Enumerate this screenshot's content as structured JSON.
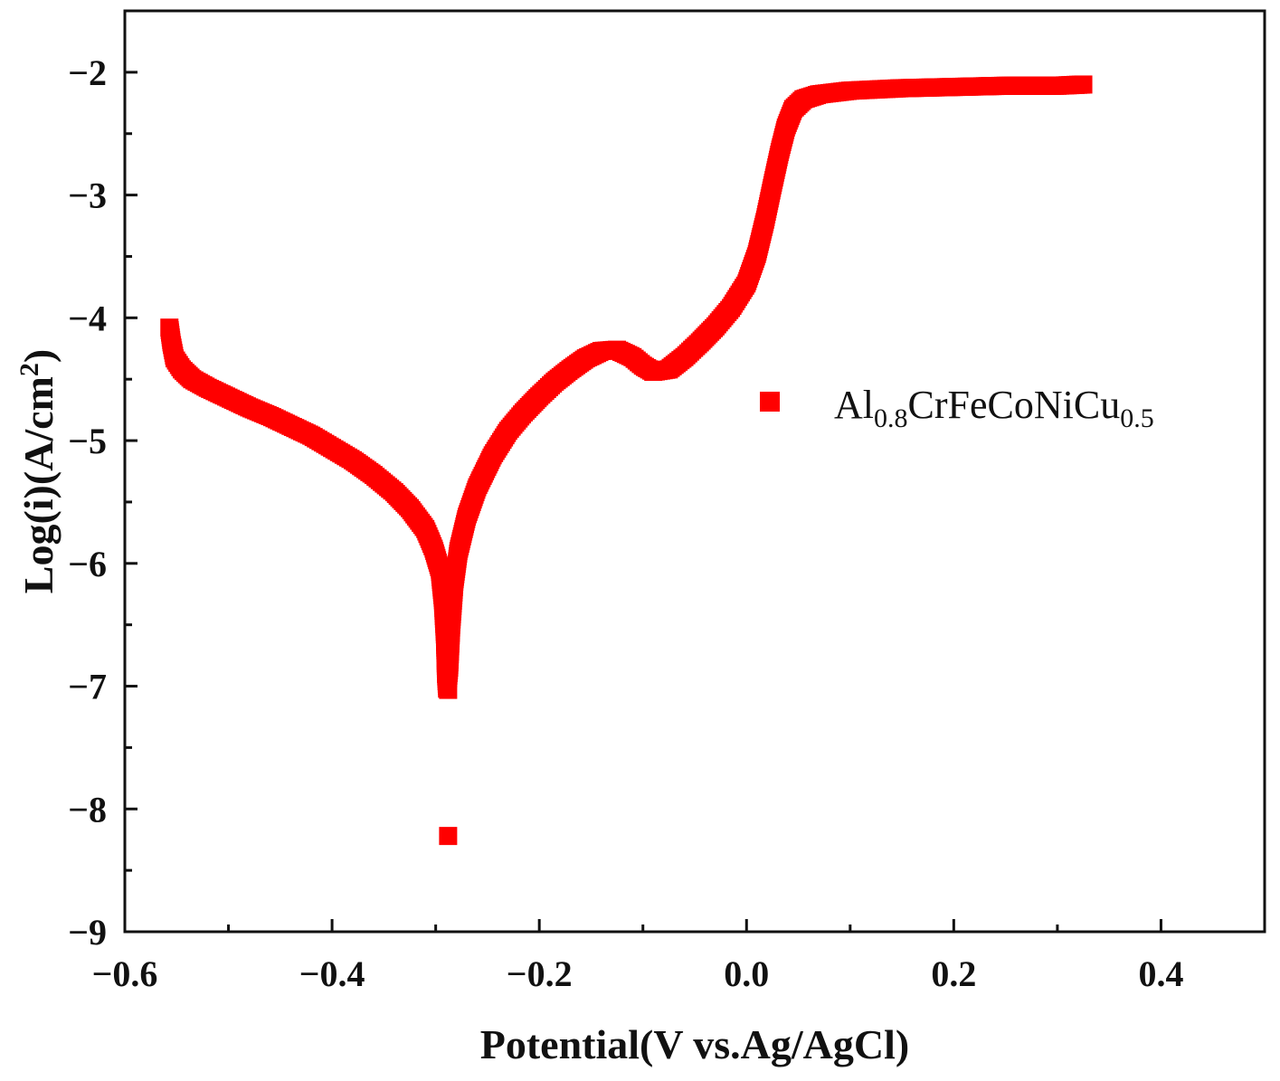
{
  "chart_data": {
    "type": "scatter",
    "title": "",
    "xlabel": "Potential(V vs.Ag/AgCl)",
    "ylabel_parts": {
      "main": "Log(i)(A/cm",
      "sup": "2",
      "end": ")"
    },
    "xlim": [
      -0.6,
      0.5
    ],
    "ylim": [
      -9,
      -1.5
    ],
    "x_ticks": [
      -0.6,
      -0.4,
      -0.2,
      0.0,
      0.2,
      0.4
    ],
    "x_tick_labels": [
      "−0.6",
      "−0.4",
      "−0.2",
      "0.0",
      "0.2",
      "0.4"
    ],
    "y_ticks": [
      -2,
      -3,
      -4,
      -5,
      -6,
      -7,
      -8,
      -9
    ],
    "y_tick_labels": [
      "−2",
      "−3",
      "−4",
      "−5",
      "−6",
      "−7",
      "−8",
      "−9"
    ],
    "grid": false,
    "legend_position": "right-middle",
    "marker_color": "#ff0000",
    "legend": {
      "parts": [
        {
          "text": "Al",
          "sub": false
        },
        {
          "text": "0.8",
          "sub": true
        },
        {
          "text": "CrFeCoNiCu",
          "sub": false
        },
        {
          "text": "0.5",
          "sub": true
        }
      ]
    },
    "series": [
      {
        "name": "Al0.8CrFeCoNiCu0.5",
        "points": [
          [
            -0.557,
            -4.08
          ],
          [
            -0.555,
            -4.2
          ],
          [
            -0.552,
            -4.33
          ],
          [
            -0.545,
            -4.42
          ],
          [
            -0.535,
            -4.5
          ],
          [
            -0.52,
            -4.57
          ],
          [
            -0.5,
            -4.65
          ],
          [
            -0.48,
            -4.73
          ],
          [
            -0.46,
            -4.8
          ],
          [
            -0.44,
            -4.88
          ],
          [
            -0.42,
            -4.96
          ],
          [
            -0.4,
            -5.06
          ],
          [
            -0.38,
            -5.16
          ],
          [
            -0.36,
            -5.28
          ],
          [
            -0.34,
            -5.42
          ],
          [
            -0.325,
            -5.55
          ],
          [
            -0.31,
            -5.72
          ],
          [
            -0.302,
            -5.88
          ],
          [
            -0.296,
            -6.05
          ],
          [
            -0.293,
            -6.3
          ],
          [
            -0.291,
            -6.6
          ],
          [
            -0.29,
            -6.9
          ],
          [
            -0.289,
            -7.02
          ],
          [
            -0.287,
            -6.85
          ],
          [
            -0.285,
            -6.5
          ],
          [
            -0.282,
            -6.15
          ],
          [
            -0.278,
            -5.9
          ],
          [
            -0.27,
            -5.62
          ],
          [
            -0.26,
            -5.38
          ],
          [
            -0.245,
            -5.12
          ],
          [
            -0.23,
            -4.92
          ],
          [
            -0.215,
            -4.77
          ],
          [
            -0.2,
            -4.64
          ],
          [
            -0.185,
            -4.52
          ],
          [
            -0.17,
            -4.42
          ],
          [
            -0.155,
            -4.33
          ],
          [
            -0.14,
            -4.27
          ],
          [
            -0.125,
            -4.26
          ],
          [
            -0.11,
            -4.32
          ],
          [
            -0.1,
            -4.39
          ],
          [
            -0.09,
            -4.44
          ],
          [
            -0.075,
            -4.42
          ],
          [
            -0.06,
            -4.32
          ],
          [
            -0.045,
            -4.2
          ],
          [
            -0.03,
            -4.07
          ],
          [
            -0.015,
            -3.92
          ],
          [
            0.0,
            -3.72
          ],
          [
            0.01,
            -3.48
          ],
          [
            0.018,
            -3.2
          ],
          [
            0.025,
            -2.92
          ],
          [
            0.032,
            -2.65
          ],
          [
            0.038,
            -2.45
          ],
          [
            0.045,
            -2.3
          ],
          [
            0.055,
            -2.22
          ],
          [
            0.07,
            -2.18
          ],
          [
            0.1,
            -2.15
          ],
          [
            0.15,
            -2.13
          ],
          [
            0.2,
            -2.12
          ],
          [
            0.25,
            -2.11
          ],
          [
            0.3,
            -2.11
          ],
          [
            0.325,
            -2.1
          ]
        ],
        "outliers": [
          [
            -0.288,
            -7.03
          ],
          [
            -0.288,
            -8.22
          ]
        ]
      }
    ]
  }
}
